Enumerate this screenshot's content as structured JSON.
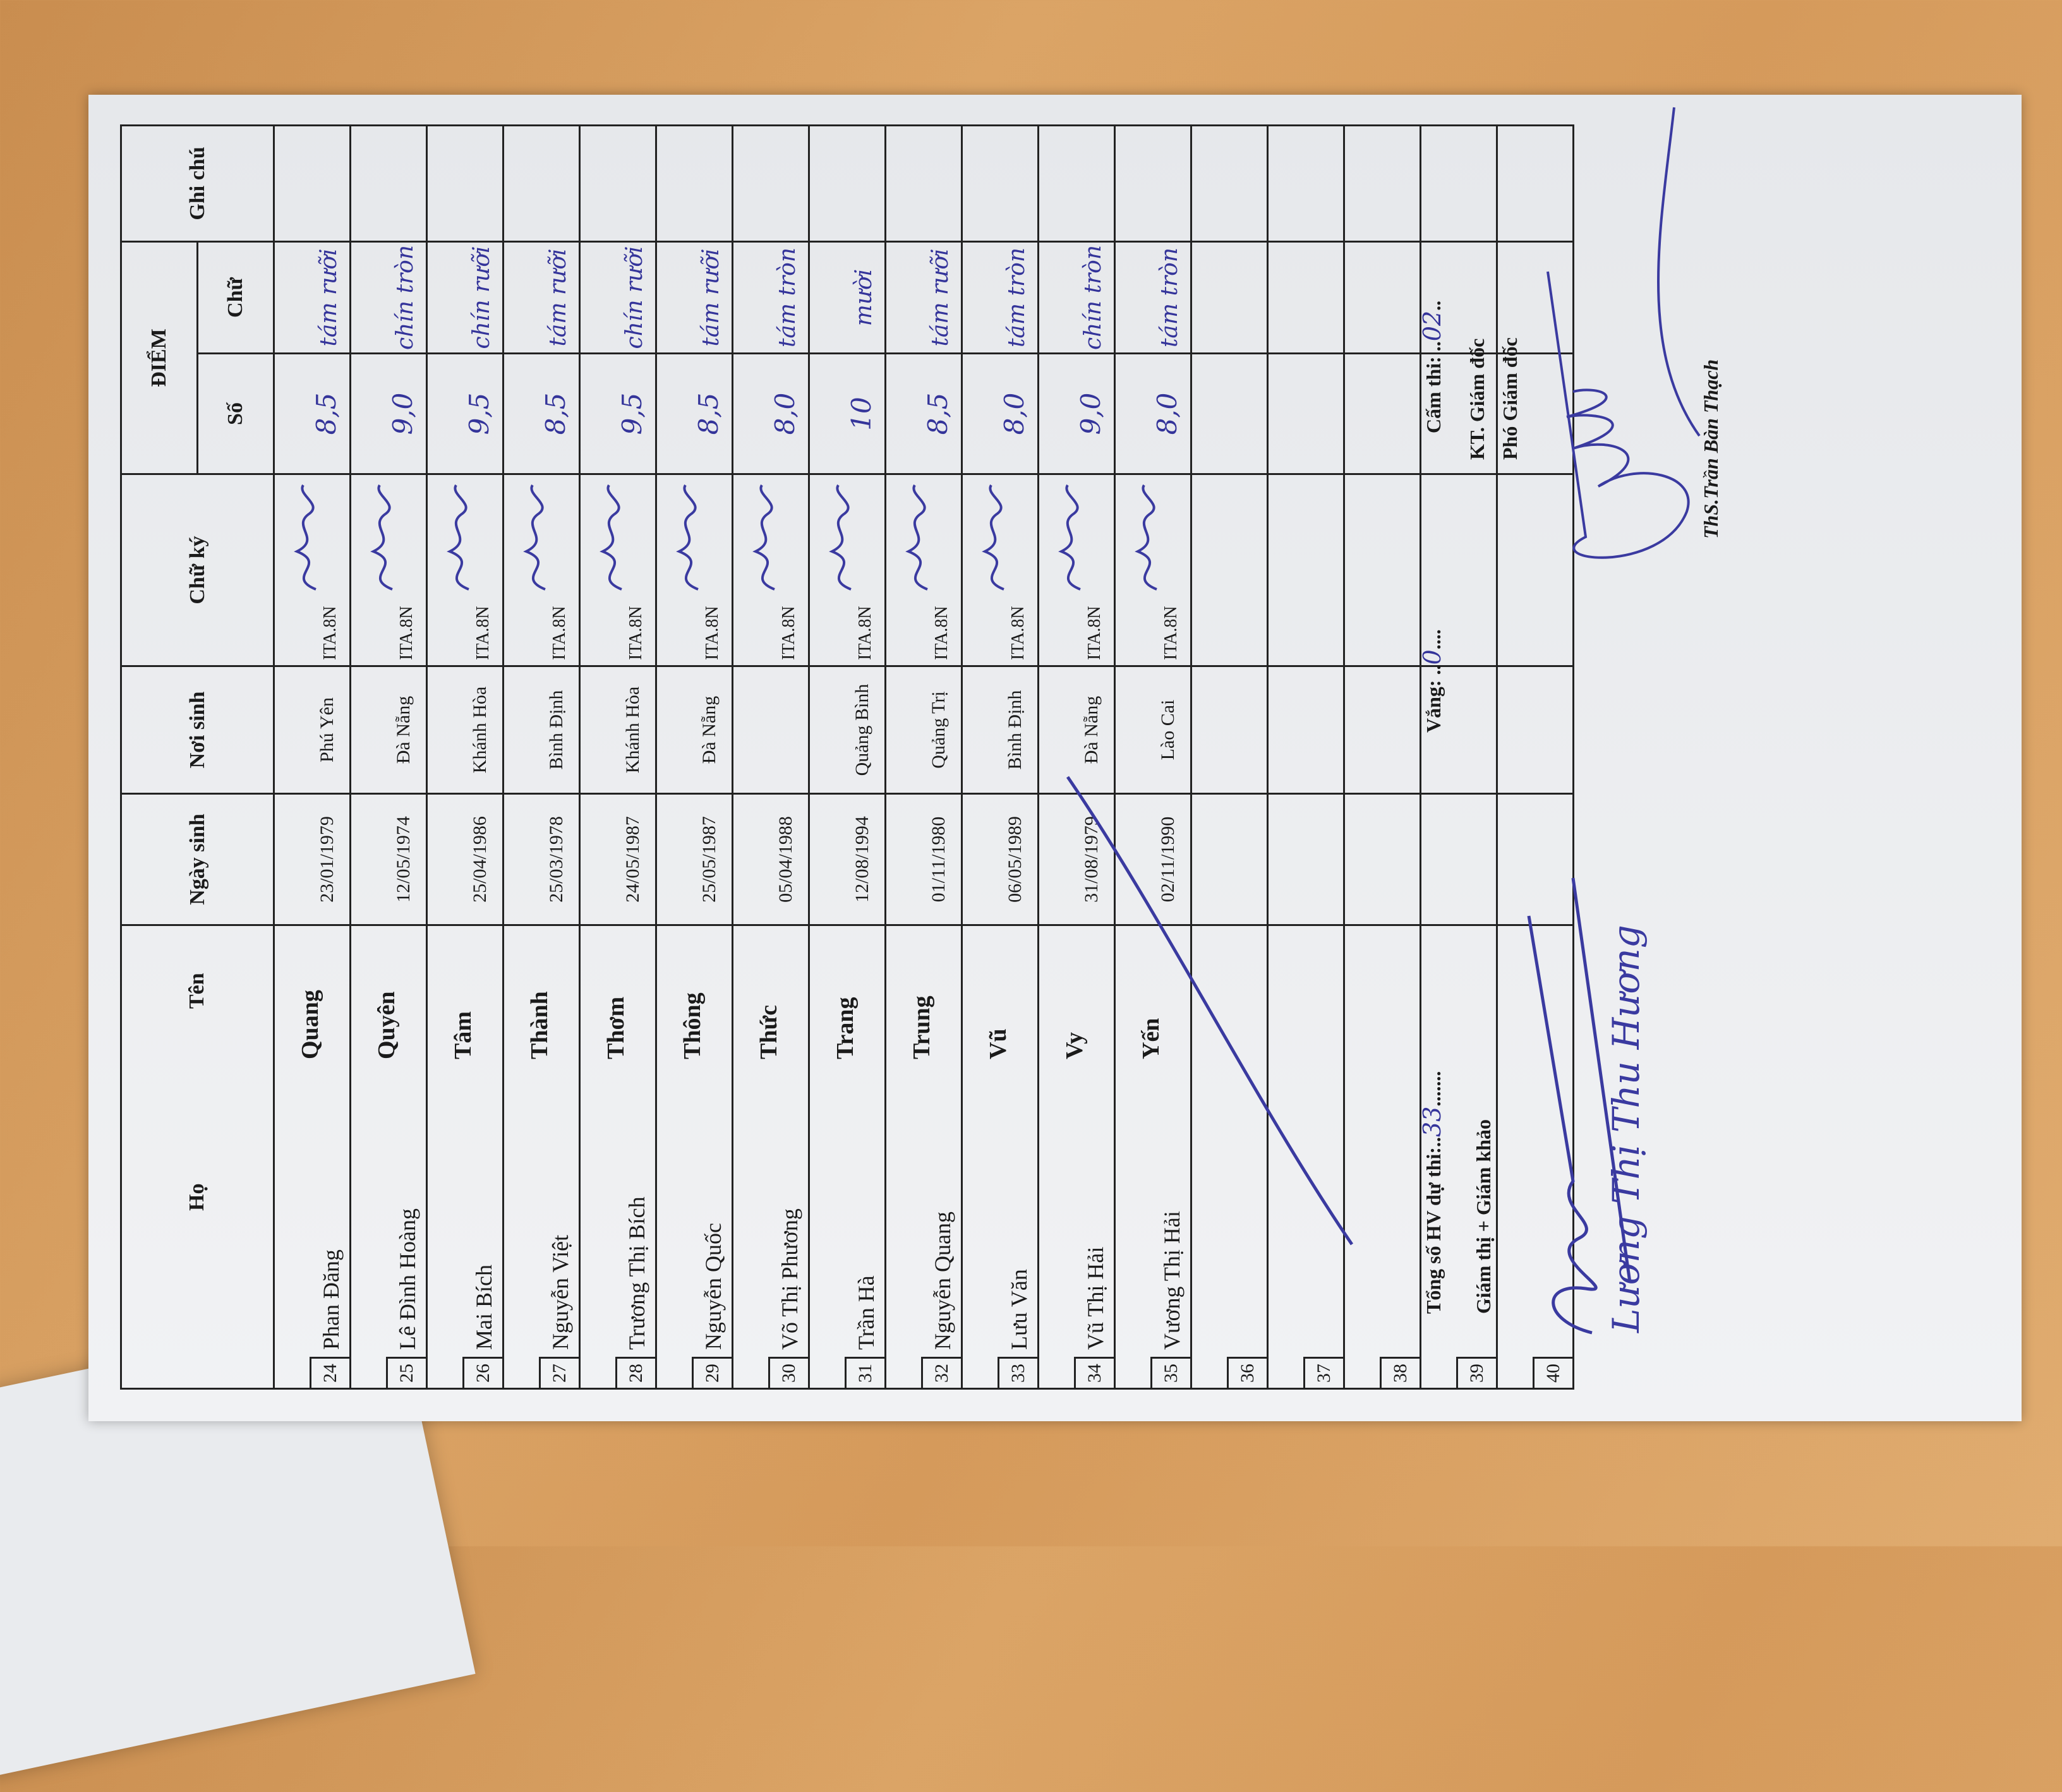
{
  "header": {
    "ho": "Họ",
    "ten": "Tên",
    "ngay_sinh": "Ngày sinh",
    "noi_sinh": "Nơi sinh",
    "chu_ky": "Chữ ký",
    "diem": "ĐIỂM",
    "so": "Số",
    "chu": "Chữ",
    "ghi_chu": "Ghi chú"
  },
  "rows": [
    {
      "stt": "24",
      "ho": "Phan Đăng",
      "ten": "Quang",
      "dob": "23/01/1979",
      "place": "Phú Yên",
      "lop": "ITA.8N",
      "so": "8,5",
      "chu": "tám rưỡi"
    },
    {
      "stt": "25",
      "ho": "Lê Đình Hoàng",
      "ten": "Quyên",
      "dob": "12/05/1974",
      "place": "Đà Nẵng",
      "lop": "ITA.8N",
      "so": "9,0",
      "chu": "chín tròn"
    },
    {
      "stt": "26",
      "ho": "Mai Bích",
      "ten": "Tâm",
      "dob": "25/04/1986",
      "place": "Khánh Hòa",
      "lop": "ITA.8N",
      "so": "9,5",
      "chu": "chín rưỡi"
    },
    {
      "stt": "27",
      "ho": "Nguyễn Việt",
      "ten": "Thành",
      "dob": "25/03/1978",
      "place": "Bình Định",
      "lop": "ITA.8N",
      "so": "8,5",
      "chu": "tám rưỡi"
    },
    {
      "stt": "28",
      "ho": "Trương Thị Bích",
      "ten": "Thơm",
      "dob": "24/05/1987",
      "place": "Khánh Hòa",
      "lop": "ITA.8N",
      "so": "9,5",
      "chu": "chín rưỡi"
    },
    {
      "stt": "29",
      "ho": "Nguyễn Quốc",
      "ten": "Thông",
      "dob": "25/05/1987",
      "place": "Đà Nẵng",
      "lop": "ITA.8N",
      "so": "8,5",
      "chu": "tám rưỡi"
    },
    {
      "stt": "30",
      "ho": "Võ Thị Phương",
      "ten": "Thức",
      "dob": "05/04/1988",
      "place": "",
      "lop": "ITA.8N",
      "so": "8,0",
      "chu": "tám tròn"
    },
    {
      "stt": "31",
      "ho": "Trần Hà",
      "ten": "Trang",
      "dob": "12/08/1994",
      "place": "Quảng Bình",
      "lop": "ITA.8N",
      "so": "10",
      "chu": "mười"
    },
    {
      "stt": "32",
      "ho": "Nguyễn Quang",
      "ten": "Trung",
      "dob": "01/11/1980",
      "place": "Quảng Trị",
      "lop": "ITA.8N",
      "so": "8,5",
      "chu": "tám rưỡi"
    },
    {
      "stt": "33",
      "ho": "Lưu Văn",
      "ten": "Vũ",
      "dob": "06/05/1989",
      "place": "Bình Định",
      "lop": "ITA.8N",
      "so": "8,0",
      "chu": "tám tròn"
    },
    {
      "stt": "34",
      "ho": "Vũ Thị Hải",
      "ten": "Vy",
      "dob": "31/08/1979",
      "place": "Đà Nẵng",
      "lop": "ITA.8N",
      "so": "9,0",
      "chu": "chín tròn"
    },
    {
      "stt": "35",
      "ho": "Vương Thị Hải",
      "ten": "Yến",
      "dob": "02/11/1990",
      "place": "Lào Cai",
      "lop": "ITA.8N",
      "so": "8,0",
      "chu": "tám tròn"
    },
    {
      "stt": "36"
    },
    {
      "stt": "37"
    },
    {
      "stt": "38"
    },
    {
      "stt": "39"
    },
    {
      "stt": "40"
    }
  ],
  "footer": {
    "tong_so_label": "Tổng số HV dự thi:..",
    "tong_so_value": "33",
    "tong_so_dots": ".......",
    "vang_label": "Vắng: ..",
    "vang_value": "0",
    "vang_dots": "....",
    "cam_thi_label": "Cấm thi: ..",
    "cam_thi_value": "02",
    "cam_thi_dots": "..",
    "giam_thi_label": "Giám thị + Giám khảo",
    "kt_label": "KT. Giám đốc",
    "pho_label": "Phó Giám đốc",
    "signer": "ThS.Trần Bàn Thạch",
    "handwritten_name": "Lương Thị Thu Hương"
  },
  "colors": {
    "ink": "#34349a",
    "paper": "#eceef1",
    "desk": "#d59a5b"
  }
}
